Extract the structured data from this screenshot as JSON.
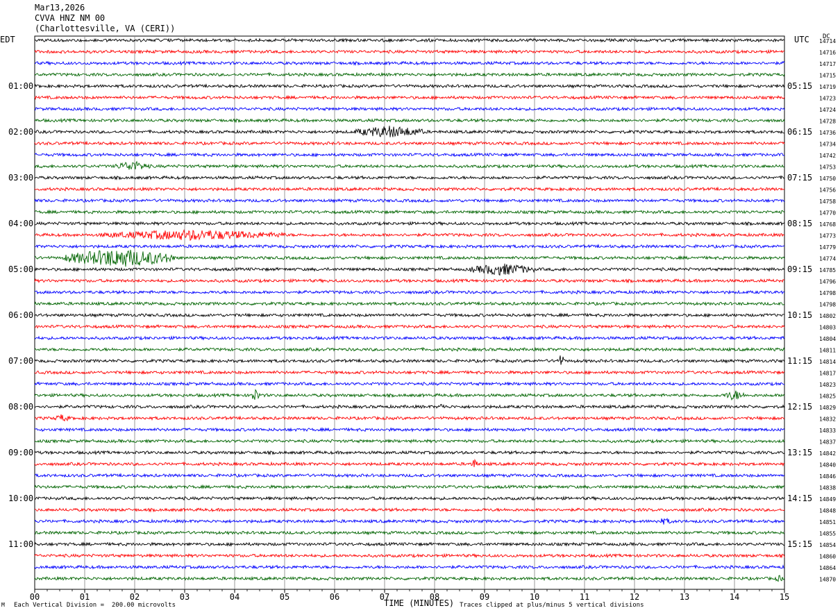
{
  "header": {
    "date": "Mar13,2026",
    "station": "CVVA HNZ NM 00",
    "location": "(Charlottesville, VA (CERI))"
  },
  "left_tz": "EDT",
  "right_tz": "UTC",
  "dc_label": "DC",
  "footer": {
    "scale": "Each Vertical Division =  200.00 microvolts",
    "xlabel": "TIME (MINUTES)",
    "clip_note": "Traces clipped at plus/minus 5 vertical divisions",
    "corner_mark": "M"
  },
  "colors": {
    "black": "#000000",
    "red": "#ff0000",
    "blue": "#0000ff",
    "green": "#006400"
  },
  "chart_data": {
    "type": "line",
    "title": "CVVA HNZ NM 00",
    "xlabel": "TIME (MINUTES)",
    "x_ticks": [
      "00",
      "01",
      "02",
      "03",
      "04",
      "05",
      "06",
      "07",
      "08",
      "09",
      "10",
      "11",
      "12",
      "13",
      "14",
      "15"
    ],
    "xlim": [
      0,
      15
    ],
    "trace_colors": [
      "black",
      "red",
      "blue",
      "green"
    ],
    "left_hour_labels": [
      "01:00",
      "02:00",
      "03:00",
      "04:00",
      "05:00",
      "06:00",
      "07:00",
      "08:00",
      "09:00",
      "10:00",
      "11:00"
    ],
    "right_hour_labels": [
      "05:15",
      "06:15",
      "07:15",
      "08:15",
      "09:15",
      "10:15",
      "11:15",
      "12:15",
      "13:15",
      "14:15",
      "15:15"
    ],
    "dc_offsets": [
      "14714",
      "14716",
      "14717",
      "14715",
      "14719",
      "14723",
      "14724",
      "14728",
      "14736",
      "14734",
      "14742",
      "14753",
      "14750",
      "14756",
      "14758",
      "14770",
      "14768",
      "14773",
      "14779",
      "14774",
      "14785",
      "14796",
      "14798",
      "14798",
      "14802",
      "14803",
      "14804",
      "14811",
      "14814",
      "14817",
      "14823",
      "14825",
      "14829",
      "14832",
      "14833",
      "14837",
      "14842",
      "14840",
      "14846",
      "14838",
      "14849",
      "14848",
      "14851",
      "14855",
      "14854",
      "14860",
      "14864",
      "14870"
    ],
    "events": [
      {
        "trace": 8,
        "start_min": 6.4,
        "end_min": 7.8,
        "amp": 9
      },
      {
        "trace": 11,
        "start_min": 1.6,
        "end_min": 2.3,
        "amp": 8
      },
      {
        "trace": 17,
        "start_min": 1.3,
        "end_min": 5.0,
        "amp": 8
      },
      {
        "trace": 19,
        "start_min": 0.6,
        "end_min": 2.8,
        "amp": 14
      },
      {
        "trace": 20,
        "start_min": 8.7,
        "end_min": 10.0,
        "amp": 9
      },
      {
        "trace": 28,
        "start_min": 10.45,
        "end_min": 10.6,
        "amp": 10
      },
      {
        "trace": 31,
        "start_min": 4.3,
        "end_min": 4.5,
        "amp": 10
      },
      {
        "trace": 31,
        "start_min": 13.8,
        "end_min": 14.2,
        "amp": 8
      },
      {
        "trace": 32,
        "start_min": 8.1,
        "end_min": 8.2,
        "amp": 7
      },
      {
        "trace": 33,
        "start_min": 0.4,
        "end_min": 0.7,
        "amp": 6
      },
      {
        "trace": 37,
        "start_min": 8.7,
        "end_min": 8.9,
        "amp": 7
      },
      {
        "trace": 42,
        "start_min": 12.4,
        "end_min": 12.8,
        "amp": 5
      },
      {
        "trace": 47,
        "start_min": 14.8,
        "end_min": 15.0,
        "amp": 5
      }
    ]
  }
}
